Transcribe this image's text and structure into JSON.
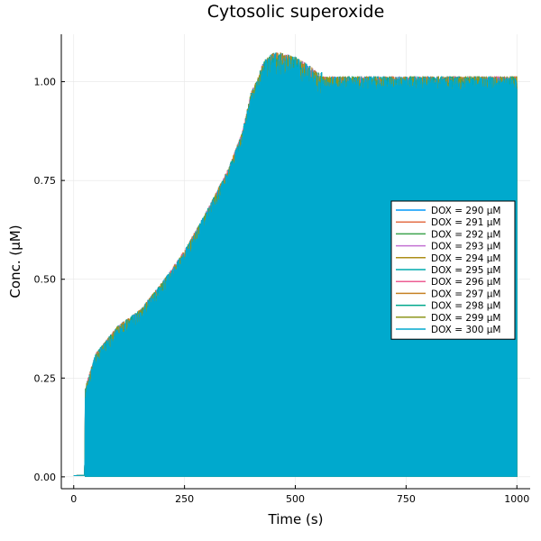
{
  "chart_data": {
    "type": "line",
    "title": "Cytosolic superoxide",
    "xlabel": "Time (s)",
    "ylabel": "Conc. (μM)",
    "xlim": [
      -28,
      1030
    ],
    "ylim": [
      -0.03,
      1.12
    ],
    "xticks": [
      0,
      250,
      500,
      750,
      1000
    ],
    "xtick_labels": [
      "0",
      "250",
      "500",
      "750",
      "1000"
    ],
    "yticks": [
      0,
      0.25,
      0.5,
      0.75,
      1.0
    ],
    "ytick_labels": [
      "0.00",
      "0.25",
      "0.50",
      "0.75",
      "1.00"
    ],
    "grid": true,
    "legend_position": "right",
    "note": "Rapidly oscillating signal; upper envelope and lower baseline shown",
    "series": [
      {
        "name": "DOX = 290 μM",
        "color": "#009AFA"
      },
      {
        "name": "DOX = 291 μM",
        "color": "#E36F47"
      },
      {
        "name": "DOX = 292 μM",
        "color": "#3EA44E"
      },
      {
        "name": "DOX = 293 μM",
        "color": "#C371D2"
      },
      {
        "name": "DOX = 294 μM",
        "color": "#AC8E18"
      },
      {
        "name": "DOX = 295 μM",
        "color": "#00AAAE"
      },
      {
        "name": "DOX = 296 μM",
        "color": "#ED5E93"
      },
      {
        "name": "DOX = 297 μM",
        "color": "#C68225"
      },
      {
        "name": "DOX = 298 μM",
        "color": "#00A98D"
      },
      {
        "name": "DOX = 299 μM",
        "color": "#8E971E"
      },
      {
        "name": "DOX = 300 μM",
        "color": "#00A9CD"
      }
    ],
    "envelope": {
      "x": [
        0,
        25,
        26,
        30,
        50,
        100,
        150,
        200,
        250,
        300,
        350,
        380,
        400,
        430,
        450,
        470,
        500,
        530,
        550,
        600,
        650,
        700,
        750,
        800,
        850,
        900,
        950,
        1000
      ],
      "upper": [
        0.003,
        0.004,
        0.21,
        0.23,
        0.3,
        0.37,
        0.41,
        0.48,
        0.56,
        0.66,
        0.77,
        0.86,
        0.96,
        1.03,
        1.05,
        1.05,
        1.04,
        1.02,
        1.0,
        1.0,
        1.0,
        1.0,
        1.0,
        1.0,
        1.0,
        1.0,
        1.0,
        1.0
      ],
      "lower": [
        0.003,
        0.004,
        0.0,
        0.0,
        0.0,
        0.0,
        0.0,
        0.0,
        0.0,
        0.0,
        0.0,
        0.0,
        0.0,
        0.0,
        0.0,
        0.0,
        0.0,
        0.0,
        0.0,
        0.0,
        0.0,
        0.0,
        0.0,
        0.0,
        0.0,
        0.0,
        0.0,
        0.0
      ]
    }
  }
}
